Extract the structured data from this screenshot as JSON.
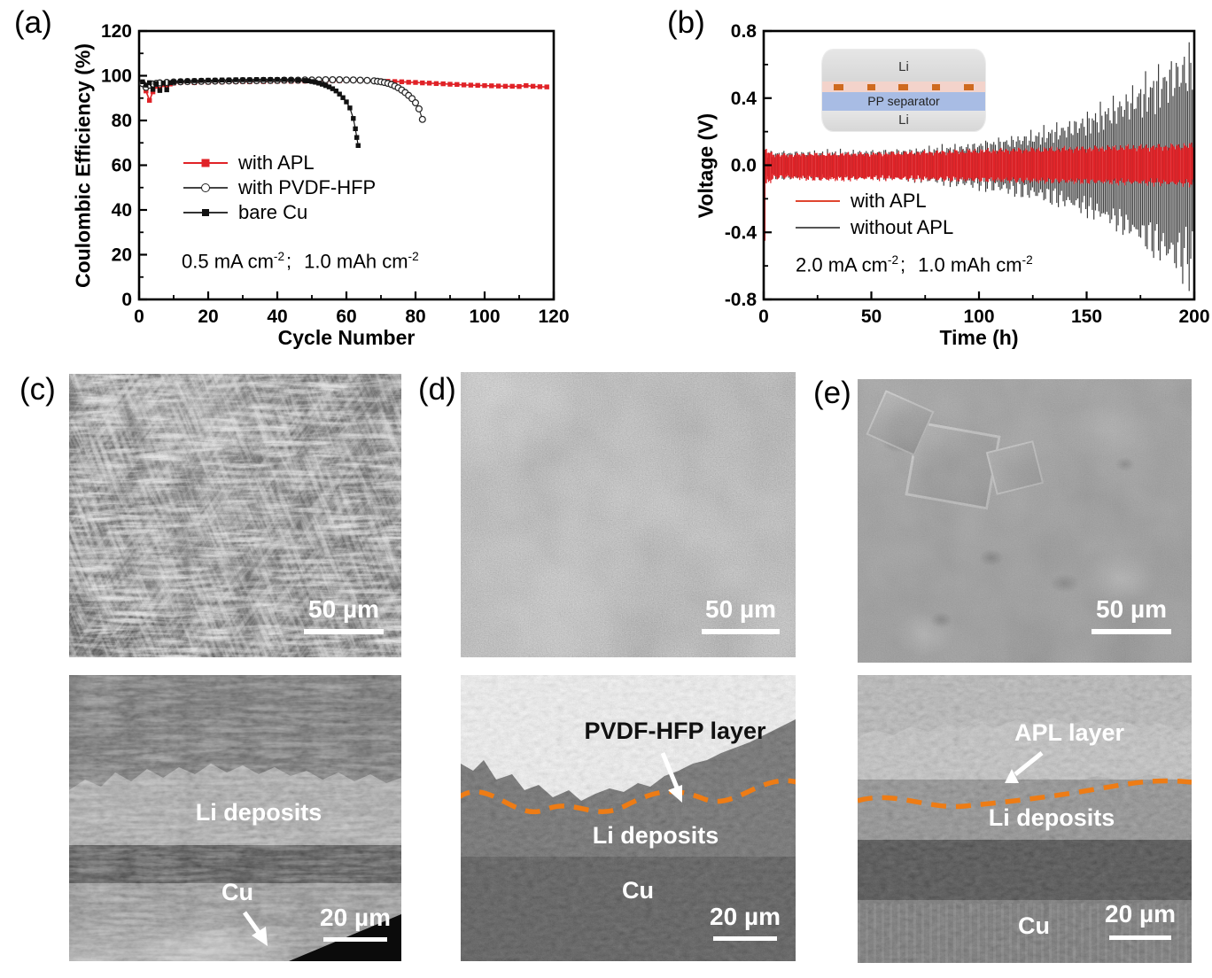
{
  "figure": {
    "panel_labels": {
      "a": "(a)",
      "b": "(b)",
      "c": "(c)",
      "d": "(d)",
      "e": "(e)"
    }
  },
  "colors": {
    "apl_red": "#e02227",
    "without_apl_gray": "#3d3d3d",
    "dashed_orange": "#ee7c15",
    "inset_separator_blue": "#a8bce4",
    "inset_apl_pink": "#f3d3cb",
    "inset_apl_particle_orange": "#cf6a1f",
    "axis_black": "#000000"
  },
  "panel_a": {
    "ylabel": "Coulombic Efficiency (%)",
    "xlabel": "Cycle Number",
    "legend": [
      {
        "label": "with APL"
      },
      {
        "label": "with PVDF-HFP"
      },
      {
        "label": "bare Cu"
      }
    ],
    "annotation": {
      "c1": "0.5 mA cm",
      "s1": "-2",
      "sep": ";",
      "c2": "1.0 mAh cm",
      "s2": "-2"
    }
  },
  "panel_b": {
    "ylabel": "Voltage (V)",
    "xlabel": "Time (h)",
    "legend": [
      {
        "label": "with APL"
      },
      {
        "label": "without APL"
      }
    ],
    "annotation": {
      "c1": "2.0 mA cm",
      "s1": "-2",
      "sep": ";",
      "c2": "1.0 mAh cm",
      "s2": "-2"
    },
    "inset": {
      "top": "Li",
      "middle": "PP separator",
      "bottom": "Li"
    }
  },
  "panel_c": {
    "scalebar_top": "50 µm",
    "scalebar_bottom": "20 µm",
    "label_li": "Li deposits",
    "label_cu": "Cu"
  },
  "panel_d": {
    "scalebar_top": "50 µm",
    "scalebar_bottom": "20 µm",
    "label_layer": "PVDF-HFP layer",
    "label_li": "Li deposits",
    "label_cu": "Cu"
  },
  "panel_e": {
    "scalebar_top": "50 µm",
    "scalebar_bottom": "20 µm",
    "label_layer": "APL layer",
    "label_li": "Li deposits",
    "label_cu": "Cu"
  },
  "chart_data": [
    {
      "id": "a",
      "type": "scatter",
      "xlabel": "Cycle Number",
      "ylabel": "Coulombic Efficiency (%)",
      "xlim": [
        0,
        120
      ],
      "ylim": [
        0,
        120
      ],
      "xticks": [
        0,
        20,
        40,
        60,
        80,
        100,
        120
      ],
      "yticks": [
        0,
        20,
        40,
        60,
        80,
        100,
        120
      ],
      "xminor": 10,
      "yminor": 10,
      "grid": false,
      "legend_position": "center-left",
      "annotation": "0.5 mA cm-2;  1.0 mAh cm-2",
      "series": [
        {
          "name": "with APL",
          "color": "#e02227",
          "marker": "filled-square",
          "points": [
            [
              1,
              96.8
            ],
            [
              2,
              93.2
            ],
            [
              3,
              89.0
            ],
            [
              4,
              92.8
            ],
            [
              5,
              95.3
            ],
            [
              6,
              94.0
            ],
            [
              7,
              96.0
            ],
            [
              8,
              95.1
            ],
            [
              9,
              96.3
            ],
            [
              10,
              96.7
            ],
            [
              12,
              97.0
            ],
            [
              14,
              97.1
            ],
            [
              16,
              96.9
            ],
            [
              18,
              97.2
            ],
            [
              20,
              97.1
            ],
            [
              22,
              97.3
            ],
            [
              24,
              97.2
            ],
            [
              26,
              97.4
            ],
            [
              28,
              97.3
            ],
            [
              30,
              97.4
            ],
            [
              32,
              97.3
            ],
            [
              34,
              97.5
            ],
            [
              36,
              97.4
            ],
            [
              38,
              97.5
            ],
            [
              40,
              97.5
            ],
            [
              42,
              97.6
            ],
            [
              44,
              97.5
            ],
            [
              46,
              97.6
            ],
            [
              48,
              97.6
            ],
            [
              50,
              97.7
            ],
            [
              52,
              97.7
            ],
            [
              54,
              97.8
            ],
            [
              56,
              97.8
            ],
            [
              58,
              97.8
            ],
            [
              60,
              97.9
            ],
            [
              62,
              97.9
            ],
            [
              64,
              97.8
            ],
            [
              66,
              97.8
            ],
            [
              68,
              97.7
            ],
            [
              70,
              97.6
            ],
            [
              72,
              97.5
            ],
            [
              74,
              97.4
            ],
            [
              76,
              97.3
            ],
            [
              78,
              97.1
            ],
            [
              80,
              97.0
            ],
            [
              82,
              96.8
            ],
            [
              84,
              96.7
            ],
            [
              86,
              96.5
            ],
            [
              88,
              96.4
            ],
            [
              90,
              96.2
            ],
            [
              92,
              96.1
            ],
            [
              94,
              95.9
            ],
            [
              96,
              95.8
            ],
            [
              98,
              95.7
            ],
            [
              100,
              95.6
            ],
            [
              102,
              95.5
            ],
            [
              104,
              95.4
            ],
            [
              106,
              95.3
            ],
            [
              108,
              95.3
            ],
            [
              110,
              95.2
            ],
            [
              112,
              95.6
            ],
            [
              114,
              95.3
            ],
            [
              116,
              95.1
            ],
            [
              118,
              95.0
            ]
          ]
        },
        {
          "name": "with PVDF-HFP",
          "color": "#2a2a2a",
          "marker": "open-circle",
          "points": [
            [
              1,
              96.5
            ],
            [
              2,
              94.8
            ],
            [
              3,
              95.8
            ],
            [
              4,
              96.3
            ],
            [
              5,
              96.6
            ],
            [
              6,
              96.8
            ],
            [
              8,
              97.0
            ],
            [
              10,
              97.2
            ],
            [
              12,
              97.3
            ],
            [
              14,
              97.4
            ],
            [
              16,
              97.4
            ],
            [
              18,
              97.5
            ],
            [
              20,
              97.5
            ],
            [
              22,
              97.6
            ],
            [
              24,
              97.6
            ],
            [
              26,
              97.7
            ],
            [
              28,
              97.7
            ],
            [
              30,
              97.8
            ],
            [
              32,
              97.8
            ],
            [
              34,
              97.8
            ],
            [
              36,
              97.9
            ],
            [
              38,
              97.9
            ],
            [
              40,
              97.9
            ],
            [
              42,
              98.0
            ],
            [
              44,
              98.0
            ],
            [
              46,
              98.0
            ],
            [
              48,
              98.1
            ],
            [
              50,
              98.1
            ],
            [
              52,
              98.1
            ],
            [
              54,
              98.2
            ],
            [
              56,
              98.2
            ],
            [
              58,
              98.2
            ],
            [
              60,
              98.1
            ],
            [
              62,
              98.1
            ],
            [
              64,
              98.0
            ],
            [
              66,
              97.9
            ],
            [
              68,
              97.7
            ],
            [
              69,
              97.5
            ],
            [
              70,
              97.3
            ],
            [
              71,
              97.0
            ],
            [
              72,
              96.6
            ],
            [
              73,
              96.1
            ],
            [
              74,
              95.4
            ],
            [
              75,
              94.6
            ],
            [
              76,
              93.6
            ],
            [
              77,
              92.5
            ],
            [
              78,
              91.2
            ],
            [
              79,
              89.8
            ],
            [
              80,
              87.9
            ],
            [
              81,
              85.2
            ],
            [
              82,
              80.5
            ]
          ]
        },
        {
          "name": "bare Cu",
          "color": "#111111",
          "marker": "filled-square",
          "points": [
            [
              1,
              97.3
            ],
            [
              2,
              95.8
            ],
            [
              3,
              96.9
            ],
            [
              4,
              93.9
            ],
            [
              5,
              96.4
            ],
            [
              6,
              93.4
            ],
            [
              7,
              96.7
            ],
            [
              8,
              93.7
            ],
            [
              9,
              96.9
            ],
            [
              10,
              97.2
            ],
            [
              12,
              97.6
            ],
            [
              14,
              97.7
            ],
            [
              16,
              97.8
            ],
            [
              18,
              97.9
            ],
            [
              20,
              98.0
            ],
            [
              22,
              98.0
            ],
            [
              24,
              98.1
            ],
            [
              26,
              98.1
            ],
            [
              28,
              98.2
            ],
            [
              30,
              98.2
            ],
            [
              32,
              98.2
            ],
            [
              34,
              98.3
            ],
            [
              36,
              98.3
            ],
            [
              38,
              98.3
            ],
            [
              40,
              98.3
            ],
            [
              42,
              98.3
            ],
            [
              44,
              98.2
            ],
            [
              46,
              98.1
            ],
            [
              48,
              97.9
            ],
            [
              49,
              97.7
            ],
            [
              50,
              97.4
            ],
            [
              51,
              97.1
            ],
            [
              52,
              96.7
            ],
            [
              53,
              96.2
            ],
            [
              54,
              95.6
            ],
            [
              55,
              95.0
            ],
            [
              56,
              94.2
            ],
            [
              57,
              93.2
            ],
            [
              58,
              91.8
            ],
            [
              59,
              90.2
            ],
            [
              60,
              88.3
            ],
            [
              61,
              85.6
            ],
            [
              62,
              80.9
            ],
            [
              62.6,
              76.3
            ],
            [
              63,
              72.4
            ],
            [
              63.4,
              68.8
            ]
          ]
        }
      ]
    },
    {
      "id": "b",
      "type": "line-envelope",
      "xlabel": "Time (h)",
      "ylabel": "Voltage (V)",
      "xlim": [
        0,
        200
      ],
      "ylim": [
        -0.8,
        0.8
      ],
      "xticks": [
        0,
        50,
        100,
        150,
        200
      ],
      "yticks": [
        0.8,
        0.4,
        0.0,
        -0.4,
        -0.8
      ],
      "xminor": 25,
      "yminor": 0.2,
      "grid": false,
      "legend_position": "center-left",
      "annotation": "2.0 mA cm-2;  1.0 mAh cm-2",
      "series": [
        {
          "name": "with APL",
          "color": "#e02227",
          "t": [
            0,
            5,
            10,
            20,
            30,
            40,
            50,
            60,
            70,
            80,
            90,
            100,
            110,
            120,
            130,
            140,
            150,
            160,
            170,
            180,
            190,
            200
          ],
          "upper": [
            0.09,
            0.062,
            0.06,
            0.064,
            0.063,
            0.066,
            0.066,
            0.07,
            0.073,
            0.076,
            0.08,
            0.084,
            0.087,
            0.09,
            0.092,
            0.095,
            0.098,
            0.101,
            0.104,
            0.107,
            0.11,
            0.115
          ],
          "lower": [
            -0.12,
            -0.072,
            -0.07,
            -0.078,
            -0.083,
            -0.08,
            -0.076,
            -0.078,
            -0.08,
            -0.082,
            -0.084,
            -0.086,
            -0.088,
            -0.09,
            -0.092,
            -0.094,
            -0.096,
            -0.098,
            -0.1,
            -0.102,
            -0.105,
            -0.108
          ],
          "initial_spike": {
            "t": 0.5,
            "v": -0.45
          }
        },
        {
          "name": "without APL",
          "color": "#3d3d3d",
          "t": [
            0,
            5,
            10,
            20,
            30,
            40,
            50,
            60,
            70,
            80,
            90,
            100,
            110,
            120,
            130,
            140,
            150,
            160,
            170,
            180,
            190,
            200
          ],
          "upper": [
            0.065,
            0.066,
            0.067,
            0.069,
            0.07,
            0.072,
            0.073,
            0.076,
            0.08,
            0.088,
            0.098,
            0.112,
            0.128,
            0.149,
            0.174,
            0.207,
            0.248,
            0.3,
            0.365,
            0.438,
            0.515,
            0.59
          ],
          "lower": [
            -0.065,
            -0.066,
            -0.067,
            -0.069,
            -0.07,
            -0.072,
            -0.073,
            -0.076,
            -0.08,
            -0.088,
            -0.098,
            -0.112,
            -0.128,
            -0.149,
            -0.174,
            -0.207,
            -0.248,
            -0.3,
            -0.365,
            -0.438,
            -0.515,
            -0.575
          ]
        }
      ]
    }
  ]
}
